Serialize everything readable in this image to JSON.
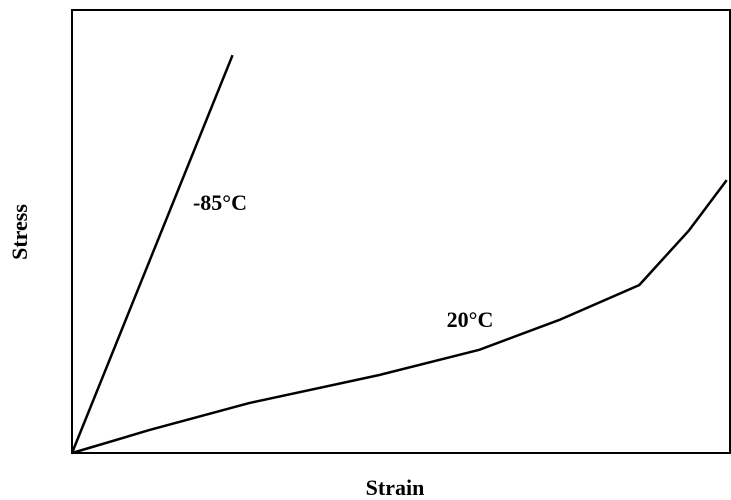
{
  "chart_data": {
    "type": "line",
    "xlabel": "Strain",
    "ylabel": "Stress",
    "xlim": [
      0,
      100
    ],
    "ylim": [
      0,
      100
    ],
    "series": [
      {
        "name": "-85°C",
        "color": "#000000",
        "x": [
          0,
          24.4
        ],
        "values": [
          0,
          89.8
        ]
      },
      {
        "name": "20°C",
        "color": "#000000",
        "x": [
          0,
          11.8,
          27,
          46.7,
          61.9,
          74,
          86.2,
          93.8,
          99.5
        ],
        "values": [
          0,
          5.2,
          11.3,
          17.6,
          23.3,
          30,
          37.9,
          50.3,
          61.6
        ]
      }
    ]
  }
}
